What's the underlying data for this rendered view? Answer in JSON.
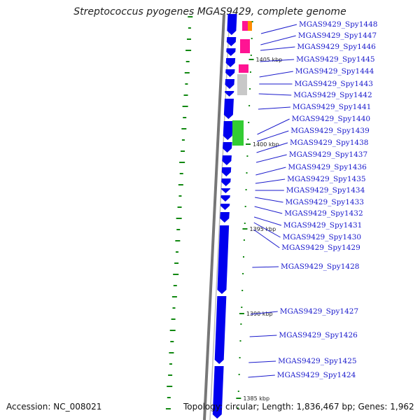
{
  "title": "Streptococcus pyogenes MGAS9429, complete genome",
  "footer": {
    "accession": "Accession: NC_008021",
    "topology": "Topology: circular; Length: 1,836,467 bp; Genes: 1,962"
  },
  "colors": {
    "gene": "#0000ee",
    "label": "#1a1acc",
    "backbone": "#777777",
    "gc_tick": "#118811",
    "pink": "#ff1493",
    "orange": "#ff8c00",
    "gray": "#c8c8c8",
    "green": "#33cc33"
  },
  "ruler": [
    "1405 kbp",
    "1400 kbp",
    "1395 kbp",
    "1390 kbp",
    "1385 kbp"
  ],
  "genes": [
    "MGAS9429_Spy1448",
    "MGAS9429_Spy1447",
    "MGAS9429_Spy1446",
    "MGAS9429_Spy1445",
    "MGAS9429_Spy1444",
    "MGAS9429_Spy1443",
    "MGAS9429_Spy1442",
    "MGAS9429_Spy1441",
    "MGAS9429_Spy1440",
    "MGAS9429_Spy1439",
    "MGAS9429_Spy1438",
    "MGAS9429_Spy1437",
    "MGAS9429_Spy1436",
    "MGAS9429_Spy1435",
    "MGAS9429_Spy1434",
    "MGAS9429_Spy1433",
    "MGAS9429_Spy1432",
    "MGAS9429_Spy1431",
    "MGAS9429_Spy1430",
    "MGAS9429_Spy1429",
    "MGAS9429_Spy1428",
    "MGAS9429_Spy1427",
    "MGAS9429_Spy1426",
    "MGAS9429_Spy1425",
    "MGAS9429_Spy1424"
  ]
}
